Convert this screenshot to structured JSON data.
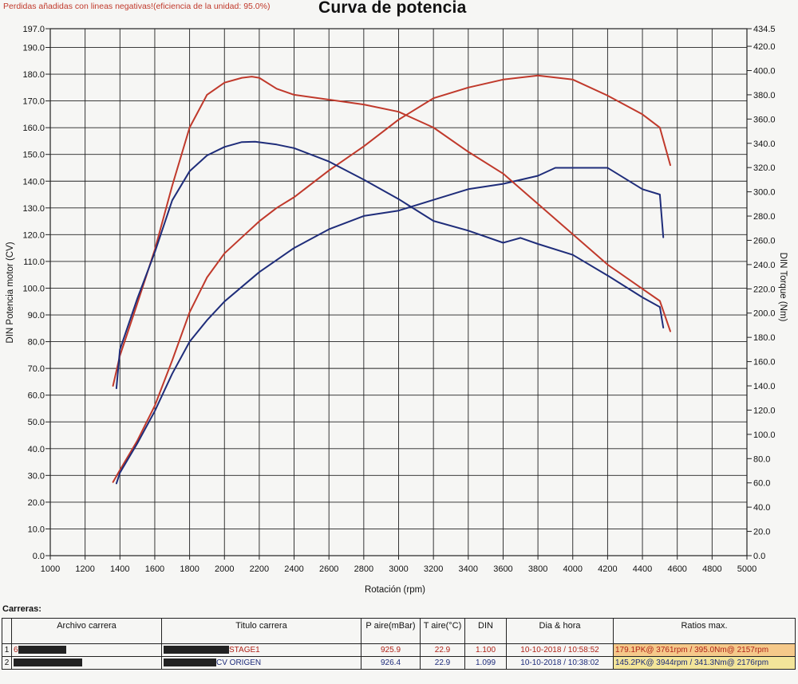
{
  "header": {
    "note": "Perdidas añadidas con lineas negativas!(eficiencia de la unidad: 95.0%)",
    "title": "Curva de potencia"
  },
  "colors": {
    "stage1": "#c0392b",
    "origen": "#1f2d7a",
    "grid": "#222222"
  },
  "chart_data": {
    "type": "line",
    "title": "Curva de potencia",
    "xlabel": "Rotación (rpm)",
    "ylabel_left": "DIN Potencia motor (CV)",
    "ylabel_right": "DIN Torque (Nm)",
    "xlim": [
      1000,
      5000
    ],
    "ylim_left": [
      0,
      197
    ],
    "ylim_right": [
      0,
      434.5
    ],
    "x_ticks": [
      1000,
      1200,
      1400,
      1600,
      1800,
      2000,
      2200,
      2400,
      2600,
      2800,
      3000,
      3200,
      3400,
      3600,
      3800,
      4000,
      4200,
      4400,
      4600,
      4800,
      5000
    ],
    "y_left_ticks": [
      "0.0",
      "10.0",
      "20.0",
      "30.0",
      "40.0",
      "50.0",
      "60.0",
      "70.0",
      "80.0",
      "90.0",
      "100.0",
      "110.0",
      "120.0",
      "130.0",
      "140.0",
      "150.0",
      "160.0",
      "170.0",
      "180.0",
      "190.0",
      "197.0"
    ],
    "y_right_ticks": [
      "0.0",
      "20.0",
      "40.0",
      "60.0",
      "80.0",
      "100.0",
      "120.0",
      "140.0",
      "160.0",
      "180.0",
      "200.0",
      "220.0",
      "240.0",
      "260.0",
      "280.0",
      "300.0",
      "320.0",
      "340.0",
      "360.0",
      "380.0",
      "400.0",
      "420.0",
      "434.5"
    ],
    "grid": true,
    "series": [
      {
        "name": "STAGE1",
        "axis": "left",
        "color": "#c0392b",
        "x": [
          1360,
          1400,
          1500,
          1600,
          1700,
          1800,
          1900,
          2000,
          2100,
          2200,
          2300,
          2400,
          2500,
          2600,
          2800,
          3000,
          3200,
          3400,
          3600,
          3800,
          4000,
          4200,
          4400,
          4500,
          4560
        ],
        "y": [
          27.5,
          32,
          43,
          56,
          73,
          91,
          104,
          113,
          119,
          125,
          130,
          134,
          139,
          144,
          153,
          163,
          171,
          175,
          178,
          179.5,
          178,
          172,
          165,
          160,
          146
        ]
      },
      {
        "name": "ORIGEN",
        "axis": "left",
        "color": "#1f2d7a",
        "x": [
          1380,
          1400,
          1500,
          1600,
          1700,
          1800,
          1900,
          2000,
          2200,
          2400,
          2600,
          2800,
          3000,
          3200,
          3400,
          3600,
          3800,
          3900,
          4000,
          4200,
          4400,
          4500,
          4520
        ],
        "y": [
          27,
          31,
          42,
          54,
          68,
          80,
          88,
          95,
          106,
          115,
          122,
          127,
          129,
          133,
          137,
          139,
          142,
          145,
          145,
          145,
          137,
          135,
          119
        ]
      },
      {
        "name": "STAGE1",
        "axis": "right",
        "color": "#c0392b",
        "x": [
          1360,
          1400,
          1500,
          1600,
          1700,
          1800,
          1900,
          2000,
          2100,
          2157,
          2200,
          2300,
          2400,
          2600,
          2800,
          3000,
          3200,
          3400,
          3600,
          3800,
          4000,
          4200,
          4400,
          4500,
          4560
        ],
        "y": [
          140,
          165,
          208,
          252,
          305,
          353,
          380,
          390,
          394,
          395,
          394,
          385,
          380,
          376,
          372,
          366,
          353,
          333,
          315,
          290,
          265,
          240,
          220,
          210,
          185
        ]
      },
      {
        "name": "ORIGEN",
        "axis": "right",
        "color": "#1f2d7a",
        "x": [
          1380,
          1400,
          1500,
          1600,
          1700,
          1800,
          1900,
          2000,
          2100,
          2176,
          2300,
          2400,
          2600,
          2800,
          3000,
          3200,
          3400,
          3600,
          3700,
          3800,
          4000,
          4200,
          4400,
          4500,
          4520
        ],
        "y": [
          138,
          170,
          212,
          250,
          293,
          317,
          330,
          337,
          341,
          341.3,
          339,
          336,
          325,
          310,
          294,
          276,
          268,
          258,
          262,
          257,
          248,
          231,
          213,
          205,
          188
        ]
      }
    ]
  },
  "runs": {
    "heading": "Carreras:",
    "columns": [
      "",
      "Archivo carrera",
      "Titulo carrera",
      "P aire(mBar)",
      "T aire(°C)",
      "DIN",
      "Dia & hora",
      "Ratios max."
    ],
    "rows": [
      {
        "num": "1",
        "archivo": "6",
        "titulo": "STAGE1",
        "p_aire": "925.9",
        "t_aire": "22.9",
        "din": "1.100",
        "fecha": "10-10-2018 / 10:58:52",
        "ratios": "179.1PK@ 3761rpm / 395.0Nm@ 2157rpm"
      },
      {
        "num": "2",
        "archivo": "",
        "titulo": "CV ORIGEN",
        "p_aire": "926.4",
        "t_aire": "22.9",
        "din": "1.099",
        "fecha": "10-10-2018 / 10:38:02",
        "ratios": "145.2PK@ 3944rpm / 341.3Nm@ 2176rpm"
      }
    ]
  }
}
